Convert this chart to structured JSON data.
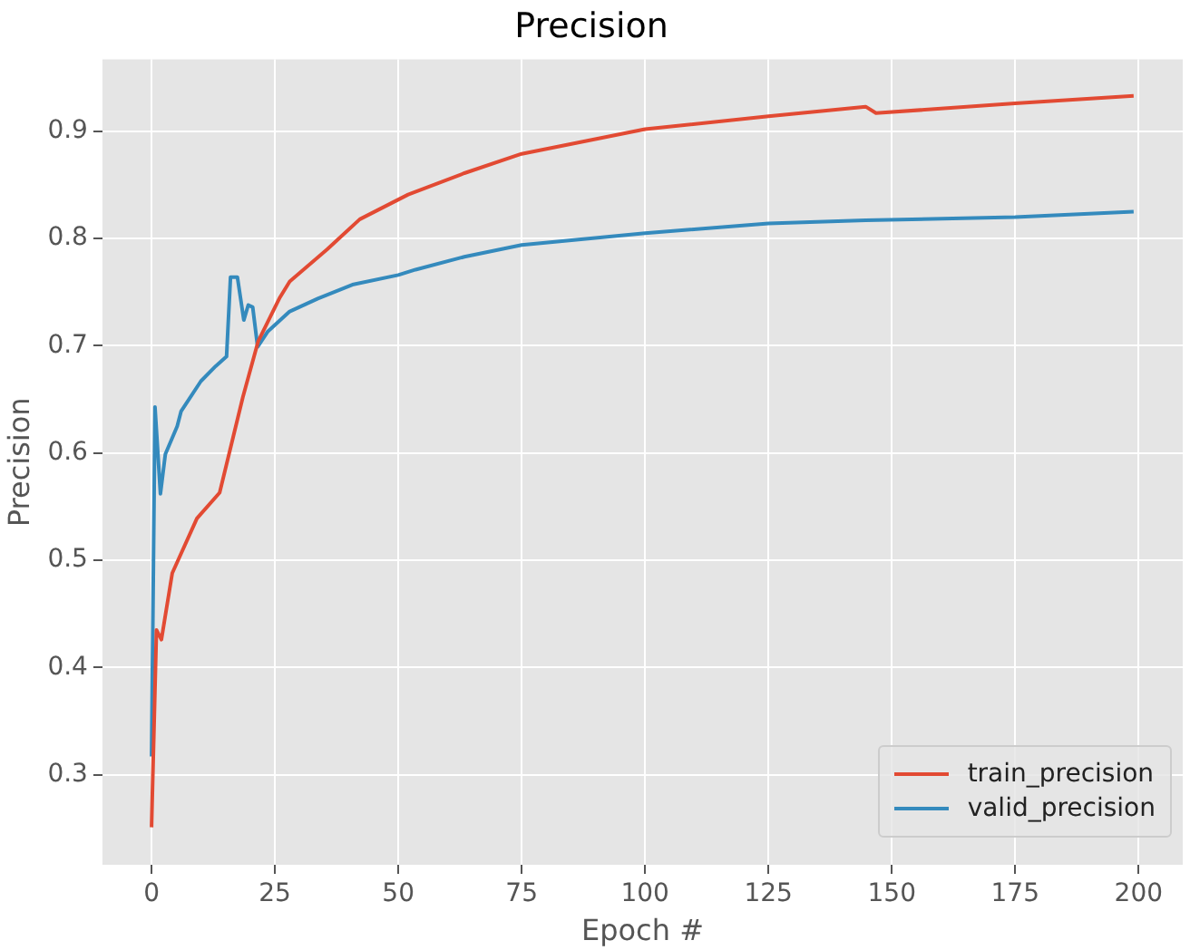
{
  "chart_data": {
    "type": "line",
    "title": "Precision",
    "xlabel": "Epoch #",
    "ylabel": "Precision",
    "xlim": [
      -9.95,
      208.95
    ],
    "xticks": [
      0,
      25,
      50,
      75,
      100,
      125,
      150,
      175,
      200
    ],
    "ylim": [
      0.216,
      0.967
    ],
    "yticks": [
      0.3,
      0.4,
      0.5,
      0.6,
      0.7,
      0.8,
      0.9
    ],
    "grid": true,
    "legend": "bottom right",
    "marker": "none",
    "line_style": "solid",
    "series": [
      {
        "name": "train_precision",
        "color": "#e24a33",
        "x": [
          0,
          1,
          2,
          4.2,
          9.2,
          13.8,
          18.5,
          21.6,
          26,
          28,
          35.6,
          42.2,
          52,
          63.4,
          75,
          100,
          125,
          144.7,
          146.8,
          175,
          199
        ],
        "values": [
          0.251,
          0.435,
          0.426,
          0.488,
          0.539,
          0.563,
          0.652,
          0.704,
          0.745,
          0.76,
          0.79,
          0.818,
          0.841,
          0.861,
          0.879,
          0.902,
          0.914,
          0.923,
          0.917,
          0.926,
          0.933
        ]
      },
      {
        "name": "valid_precision",
        "color": "#348abd",
        "x": [
          0,
          0.7,
          1.8,
          2.8,
          5.2,
          6,
          10,
          13,
          15.2,
          16,
          17.4,
          18.7,
          19.6,
          20.5,
          21.5,
          23.5,
          28,
          33.7,
          40.7,
          50,
          53.5,
          63.4,
          75,
          100,
          125,
          144.7,
          175,
          199
        ],
        "values": [
          0.317,
          0.643,
          0.562,
          0.599,
          0.625,
          0.639,
          0.667,
          0.681,
          0.69,
          0.764,
          0.764,
          0.724,
          0.738,
          0.736,
          0.699,
          0.713,
          0.732,
          0.744,
          0.757,
          0.766,
          0.771,
          0.783,
          0.794,
          0.805,
          0.814,
          0.817,
          0.82,
          0.825
        ]
      }
    ]
  }
}
